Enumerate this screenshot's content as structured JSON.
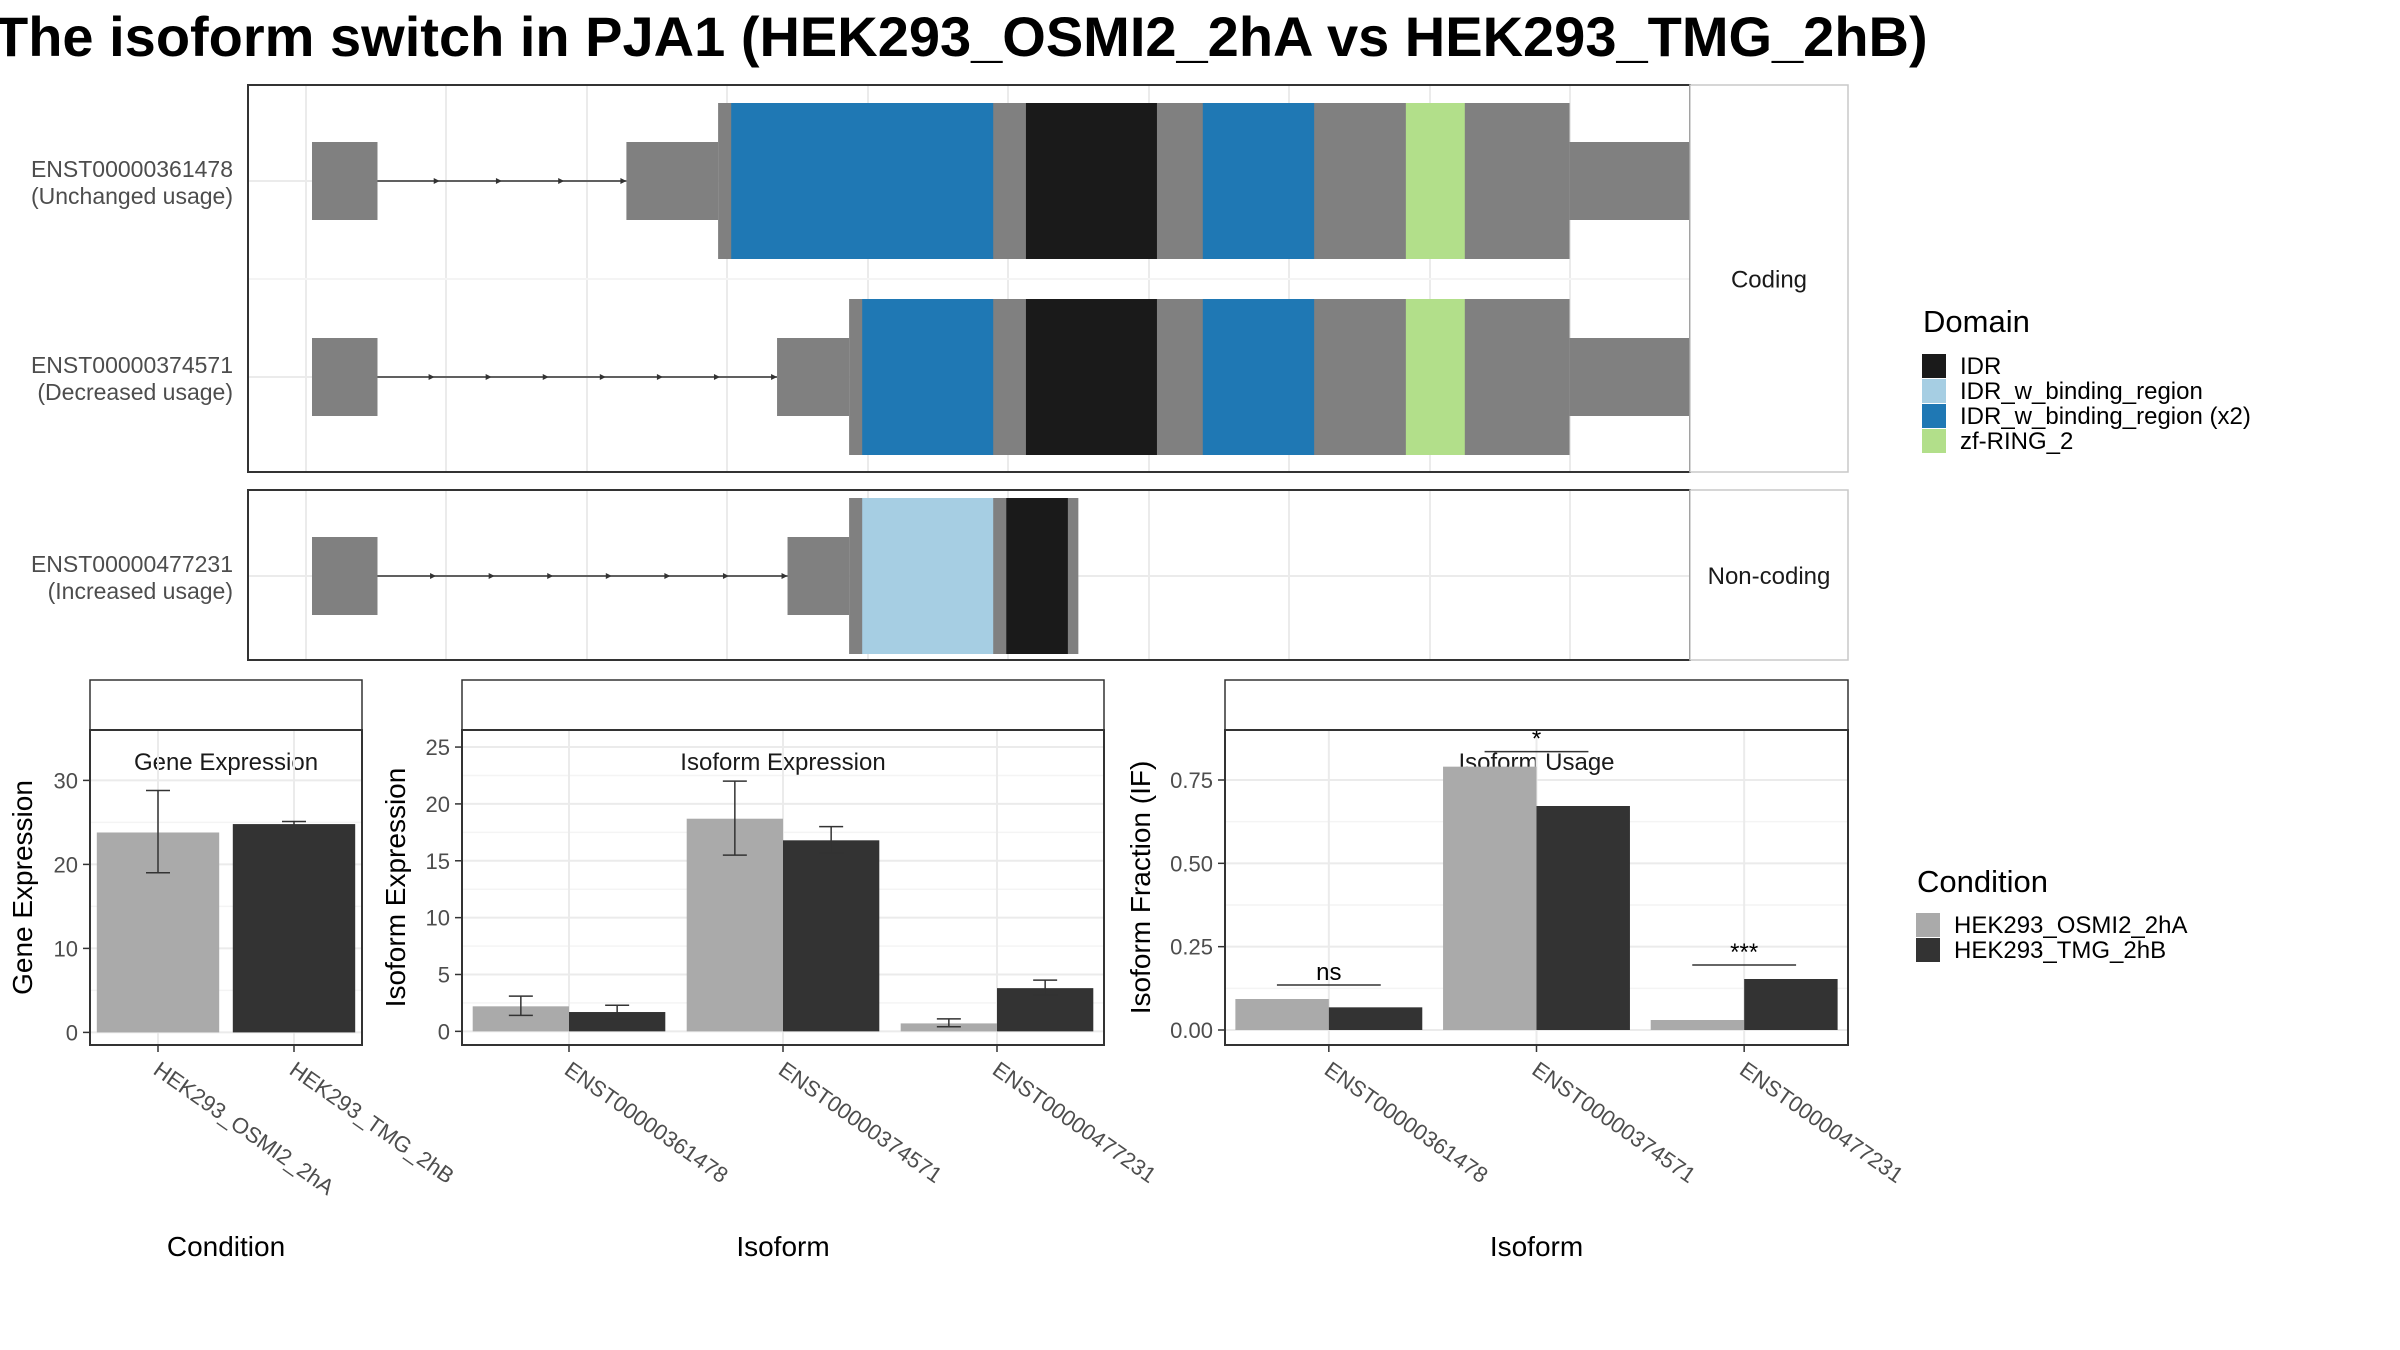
{
  "title": "The isoform switch in PJA1 (HEK293_OSMI2_2hA vs HEK293_TMG_2hB)",
  "colors": {
    "exon": "#808080",
    "domain_IDR": "#1a1a1a",
    "domain_IDR_w_binding_region": "#a6cee3",
    "domain_IDR_w_binding_region_x2": "#1f78b4",
    "domain_zf_RING_2": "#b2df8a",
    "condition_A": "#aaaaaa",
    "condition_B": "#333333",
    "panel_border": "#333333",
    "strip_border": "#c8c8c8",
    "grid": "#ebebeb"
  },
  "legend": {
    "domain_title": "Domain",
    "domain_items": [
      {
        "label": "IDR",
        "color_key": "domain_IDR"
      },
      {
        "label": "IDR_w_binding_region",
        "color_key": "domain_IDR_w_binding_region"
      },
      {
        "label": "IDR_w_binding_region (x2)",
        "color_key": "domain_IDR_w_binding_region_x2"
      },
      {
        "label": "zf-RING_2",
        "color_key": "domain_zf_RING_2"
      }
    ],
    "condition_title": "Condition",
    "condition_items": [
      {
        "label": "HEK293_OSMI2_2hA",
        "color_key": "condition_A"
      },
      {
        "label": "HEK293_TMG_2hB",
        "color_key": "condition_B"
      }
    ]
  },
  "structure": {
    "facets": [
      {
        "label": "Coding",
        "transcripts": [
          {
            "id": "ENST00000361478",
            "usage": "(Unchanged usage)",
            "segments": [
              {
                "start": 0.0,
                "end": 0.05,
                "kind": "utr"
              },
              {
                "start": 0.24,
                "end": 0.31,
                "kind": "utr"
              },
              {
                "start": 0.31,
                "end": 0.96,
                "kind": "cds"
              },
              {
                "start": 0.96,
                "end": 1.06,
                "kind": "utr"
              }
            ],
            "domains": [
              {
                "start": 0.32,
                "end": 0.52,
                "type": "domain_IDR_w_binding_region_x2"
              },
              {
                "start": 0.545,
                "end": 0.645,
                "type": "domain_IDR"
              },
              {
                "start": 0.68,
                "end": 0.765,
                "type": "domain_IDR_w_binding_region_x2"
              },
              {
                "start": 0.835,
                "end": 0.88,
                "type": "domain_zf_RING_2"
              }
            ]
          },
          {
            "id": "ENST00000374571",
            "usage": "(Decreased usage)",
            "segments": [
              {
                "start": 0.0,
                "end": 0.05,
                "kind": "utr"
              },
              {
                "start": 0.355,
                "end": 0.41,
                "kind": "utr"
              },
              {
                "start": 0.41,
                "end": 0.96,
                "kind": "cds"
              },
              {
                "start": 0.96,
                "end": 1.065,
                "kind": "utr"
              }
            ],
            "domains": [
              {
                "start": 0.42,
                "end": 0.52,
                "type": "domain_IDR_w_binding_region_x2"
              },
              {
                "start": 0.545,
                "end": 0.645,
                "type": "domain_IDR"
              },
              {
                "start": 0.68,
                "end": 0.765,
                "type": "domain_IDR_w_binding_region_x2"
              },
              {
                "start": 0.835,
                "end": 0.88,
                "type": "domain_zf_RING_2"
              }
            ]
          }
        ]
      },
      {
        "label": "Non-coding",
        "transcripts": [
          {
            "id": "ENST00000477231",
            "usage": "(Increased usage)",
            "segments": [
              {
                "start": 0.0,
                "end": 0.05,
                "kind": "utr"
              },
              {
                "start": 0.363,
                "end": 0.41,
                "kind": "utr"
              },
              {
                "start": 0.41,
                "end": 0.585,
                "kind": "cds"
              }
            ],
            "domains": [
              {
                "start": 0.42,
                "end": 0.52,
                "type": "domain_IDR_w_binding_region"
              },
              {
                "start": 0.53,
                "end": 0.577,
                "type": "domain_IDR"
              }
            ]
          }
        ]
      }
    ]
  },
  "chart_data": [
    {
      "type": "bar",
      "title": "Gene Expression",
      "xlabel": "Condition",
      "ylabel": "Gene Expression",
      "ylim": [
        -1.5,
        36
      ],
      "yticks": [
        0,
        10,
        20,
        30
      ],
      "categories": [
        "HEK293_OSMI2_2hA",
        "HEK293_TMG_2hB"
      ],
      "single_bar_per_category": true,
      "series": [
        {
          "values": [
            23.8,
            24.8
          ],
          "err_low": [
            19.0,
            24.6
          ],
          "err_high": [
            28.8,
            25.1
          ]
        }
      ]
    },
    {
      "type": "bar",
      "title": "Isoform Expression",
      "xlabel": "Isoform",
      "ylabel": "Isoform Expression",
      "ylim": [
        -1.2,
        26.5
      ],
      "yticks": [
        0,
        5,
        10,
        15,
        20,
        25
      ],
      "categories": [
        "ENST00000361478",
        "ENST00000374571",
        "ENST00000477231"
      ],
      "series": [
        {
          "name": "HEK293_OSMI2_2hA",
          "values": [
            2.2,
            18.7,
            0.7
          ],
          "err_low": [
            1.4,
            15.5,
            0.4
          ],
          "err_high": [
            3.1,
            22.0,
            1.1
          ]
        },
        {
          "name": "HEK293_TMG_2hB",
          "values": [
            1.7,
            16.8,
            3.8
          ],
          "err_low": [
            1.1,
            15.7,
            3.2
          ],
          "err_high": [
            2.3,
            18.0,
            4.5
          ]
        }
      ]
    },
    {
      "type": "bar",
      "title": "Isoform Usage",
      "xlabel": "Isoform",
      "ylabel": "Isoform Fraction (IF)",
      "ylim": [
        -0.045,
        0.9
      ],
      "yticks": [
        0.0,
        0.25,
        0.5,
        0.75
      ],
      "yticklabels": [
        "0.00",
        "0.25",
        "0.50",
        "0.75"
      ],
      "categories": [
        "ENST00000361478",
        "ENST00000374571",
        "ENST00000477231"
      ],
      "series": [
        {
          "name": "HEK293_OSMI2_2hA",
          "values": [
            0.093,
            0.79,
            0.03
          ]
        },
        {
          "name": "HEK293_TMG_2hB",
          "values": [
            0.068,
            0.672,
            0.153
          ]
        }
      ],
      "significance": [
        {
          "category_index": 0,
          "label": "ns",
          "y": 0.135
        },
        {
          "category_index": 1,
          "label": "*",
          "y": 0.835
        },
        {
          "category_index": 2,
          "label": "***",
          "y": 0.195
        }
      ]
    }
  ]
}
